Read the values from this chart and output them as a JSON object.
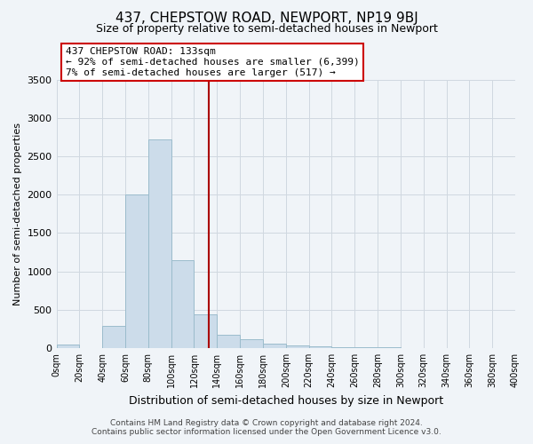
{
  "title": "437, CHEPSTOW ROAD, NEWPORT, NP19 9BJ",
  "subtitle": "Size of property relative to semi-detached houses in Newport",
  "xlabel": "Distribution of semi-detached houses by size in Newport",
  "ylabel": "Number of semi-detached properties",
  "bar_color": "#ccdcea",
  "bar_edge_color": "#9bbccc",
  "bin_edges": [
    0,
    20,
    40,
    60,
    80,
    100,
    120,
    140,
    160,
    180,
    200,
    220,
    240,
    260,
    280,
    300,
    320,
    340,
    360,
    380,
    400
  ],
  "bar_heights": [
    50,
    0,
    285,
    2000,
    2720,
    1150,
    440,
    170,
    110,
    60,
    30,
    20,
    15,
    10,
    5,
    3,
    2,
    1,
    1,
    0
  ],
  "property_size": 133,
  "vline_color": "#aa0000",
  "annotation_title": "437 CHEPSTOW ROAD: 133sqm",
  "annotation_line1": "← 92% of semi-detached houses are smaller (6,399)",
  "annotation_line2": "7% of semi-detached houses are larger (517) →",
  "annotation_box_color": "#ffffff",
  "annotation_box_edge": "#cc0000",
  "ylim": [
    0,
    3500
  ],
  "yticks": [
    0,
    500,
    1000,
    1500,
    2000,
    2500,
    3000,
    3500
  ],
  "xtick_labels": [
    "0sqm",
    "20sqm",
    "40sqm",
    "60sqm",
    "80sqm",
    "100sqm",
    "120sqm",
    "140sqm",
    "160sqm",
    "180sqm",
    "200sqm",
    "220sqm",
    "240sqm",
    "260sqm",
    "280sqm",
    "300sqm",
    "320sqm",
    "340sqm",
    "360sqm",
    "380sqm",
    "400sqm"
  ],
  "footer_line1": "Contains HM Land Registry data © Crown copyright and database right 2024.",
  "footer_line2": "Contains public sector information licensed under the Open Government Licence v3.0.",
  "background_color": "#f0f4f8",
  "grid_color": "#d0d8e0",
  "title_fontsize": 11,
  "subtitle_fontsize": 9
}
